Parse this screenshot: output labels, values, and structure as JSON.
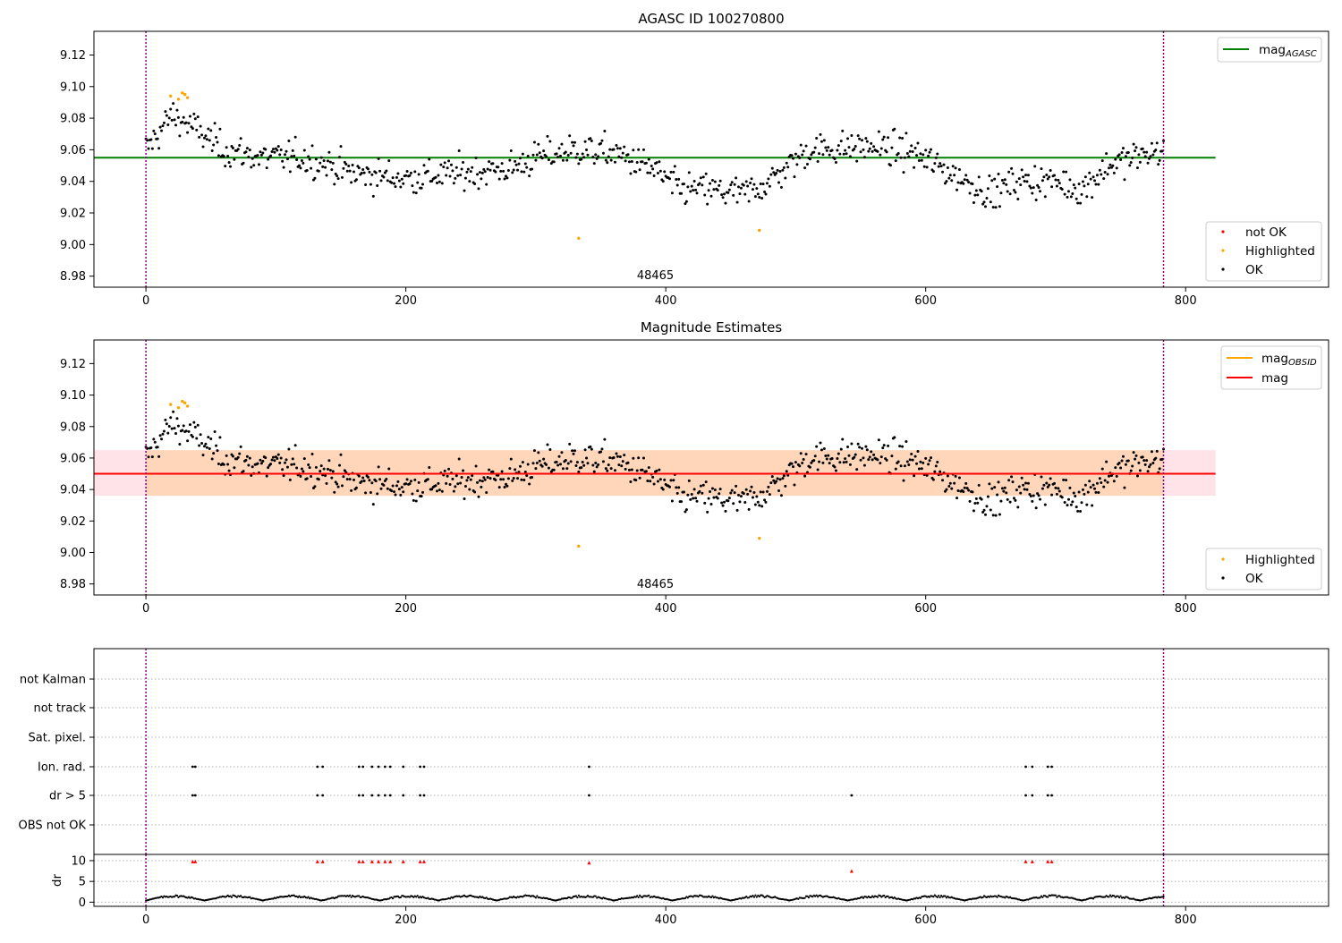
{
  "figure": {
    "colors": {
      "ok": "#000000",
      "highlighted": "#ffa500",
      "not_ok": "#ff0000",
      "mag_agasc": "#008000",
      "mag_obsid": "#ffa500",
      "mag": "#ff0000",
      "band_orange": "#ffa500",
      "band_pink": "#ffc0cb",
      "obs_boundary": "#800080",
      "grid": "#b0b0b0"
    }
  },
  "chart_data": [
    {
      "type": "scatter",
      "title": "AGASC ID 100270800",
      "xlim": [
        -40,
        910
      ],
      "ylim": [
        8.973,
        9.135
      ],
      "x_ticks": [
        0,
        200,
        400,
        600,
        800
      ],
      "y_ticks": [
        "9.12",
        "9.10",
        "9.08",
        "9.06",
        "9.04",
        "9.02",
        "9.00",
        "8.98"
      ],
      "obsid_label": "48465",
      "obsid_label_x": 392,
      "obs_boundaries": [
        0,
        783
      ],
      "mag_agasc": 9.055,
      "line_xrange": [
        -40,
        823
      ],
      "legend_line": {
        "label_main": "mag",
        "label_sub": "AGASC",
        "location": "upper right"
      },
      "legend_points": {
        "entries": [
          "not OK",
          "Highlighted",
          "OK"
        ],
        "location": "lower right"
      },
      "highlighted_points": [
        [
          19,
          9.094
        ],
        [
          25,
          9.092
        ],
        [
          28,
          9.096
        ],
        [
          30,
          9.095
        ],
        [
          32,
          9.093
        ],
        [
          333,
          9.004
        ],
        [
          472,
          9.009
        ]
      ],
      "ok_series": {
        "n": 783,
        "anchors": [
          [
            0,
            9.06
          ],
          [
            20,
            9.082
          ],
          [
            35,
            9.075
          ],
          [
            60,
            9.06
          ],
          [
            90,
            9.055
          ],
          [
            120,
            9.055
          ],
          [
            135,
            9.052
          ],
          [
            160,
            9.045
          ],
          [
            200,
            9.042
          ],
          [
            240,
            9.045
          ],
          [
            280,
            9.048
          ],
          [
            300,
            9.055
          ],
          [
            330,
            9.06
          ],
          [
            360,
            9.058
          ],
          [
            390,
            9.048
          ],
          [
            410,
            9.035
          ],
          [
            430,
            9.035
          ],
          [
            460,
            9.032
          ],
          [
            480,
            9.04
          ],
          [
            510,
            9.06
          ],
          [
            560,
            9.062
          ],
          [
            590,
            9.058
          ],
          [
            620,
            9.045
          ],
          [
            650,
            9.032
          ],
          [
            670,
            9.04
          ],
          [
            700,
            9.04
          ],
          [
            720,
            9.035
          ],
          [
            740,
            9.05
          ],
          [
            760,
            9.055
          ],
          [
            783,
            9.06
          ]
        ],
        "scatter_sd": 0.011
      }
    },
    {
      "type": "scatter",
      "title": "Magnitude Estimates",
      "xlim": [
        -40,
        910
      ],
      "ylim": [
        8.973,
        9.135
      ],
      "x_ticks": [
        0,
        200,
        400,
        600,
        800
      ],
      "y_ticks": [
        "9.12",
        "9.10",
        "9.08",
        "9.06",
        "9.04",
        "9.02",
        "9.00",
        "8.98"
      ],
      "obsid_label": "48465",
      "obsid_label_x": 392,
      "obs_boundaries": [
        0,
        783
      ],
      "mag_obsid": 9.05,
      "mag": 9.05,
      "band_obsid": [
        9.036,
        9.065
      ],
      "band_mag": [
        9.036,
        9.065
      ],
      "line_xrange": [
        -40,
        823
      ],
      "legend_lines": {
        "entries": [
          {
            "label_main": "mag",
            "label_sub": "OBSID"
          },
          {
            "label_main": "mag",
            "label_sub": ""
          }
        ],
        "location": "upper right"
      },
      "legend_points": {
        "entries": [
          "Highlighted",
          "OK"
        ],
        "location": "lower right"
      }
    },
    {
      "type": "scatter",
      "xlim": [
        -40,
        910
      ],
      "flag_labels": [
        "not Kalman",
        "not track",
        "Sat. pixel.",
        "Ion. rad.",
        "dr > 5",
        "OBS not OK"
      ],
      "flag_points": {
        "Ion. rad.": [
          36,
          38,
          132,
          136,
          164,
          167,
          174,
          179,
          184,
          188,
          198,
          211,
          214,
          341,
          677,
          682,
          694,
          697
        ],
        "dr > 5": [
          36,
          38,
          132,
          136,
          164,
          167,
          174,
          179,
          184,
          188,
          198,
          211,
          214,
          341,
          543,
          677,
          682,
          694,
          697
        ]
      },
      "dr_panel": {
        "ylabel": "dr",
        "ylim": [
          -1,
          11.5
        ],
        "y_ticks": [
          "0",
          "5",
          "10"
        ],
        "x_ticks": [
          0,
          200,
          400,
          600,
          800
        ],
        "high_points": [
          [
            36,
            9.8
          ],
          [
            38,
            9.8
          ],
          [
            132,
            9.8
          ],
          [
            136,
            9.8
          ],
          [
            164,
            9.8
          ],
          [
            167,
            9.8
          ],
          [
            174,
            9.8
          ],
          [
            179,
            9.8
          ],
          [
            184,
            9.8
          ],
          [
            188,
            9.8
          ],
          [
            198,
            9.8
          ],
          [
            211,
            9.8
          ],
          [
            214,
            9.8
          ],
          [
            341,
            9.5
          ],
          [
            543,
            7.5
          ],
          [
            677,
            9.8
          ],
          [
            682,
            9.8
          ],
          [
            694,
            9.8
          ],
          [
            697,
            9.8
          ]
        ]
      }
    }
  ]
}
